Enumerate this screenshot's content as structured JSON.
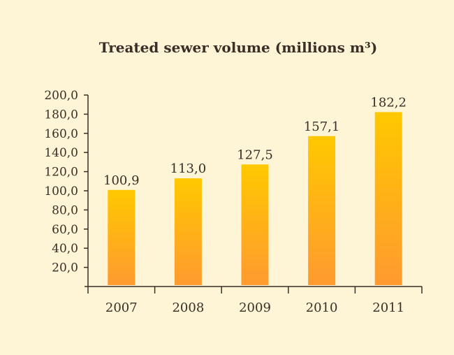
{
  "chart_data": {
    "type": "bar",
    "title": "Treated sewer volume (millions m³)",
    "categories": [
      "2007",
      "2008",
      "2009",
      "2010",
      "2011"
    ],
    "values": [
      100.9,
      113.0,
      127.5,
      157.1,
      182.2
    ],
    "value_labels": [
      "100,9",
      "113,0",
      "127,5",
      "157,1",
      "182,2"
    ],
    "yticks": [
      20,
      40,
      60,
      80,
      100,
      120,
      140,
      160,
      180,
      200
    ],
    "ytick_labels": [
      "20,0",
      "40,0",
      "60,0",
      "80,0",
      "100,0",
      "120,0",
      "140,0",
      "160,0",
      "180,0",
      "200,0"
    ],
    "ylim": [
      0,
      200
    ],
    "xlabel": "",
    "ylabel": "",
    "grid": false,
    "legend": "none",
    "colors": {
      "bar_top": "#ffc800",
      "bar_bottom": "#ff9a30",
      "axis": "#3a2e26",
      "background": "#fdf5d6"
    }
  }
}
